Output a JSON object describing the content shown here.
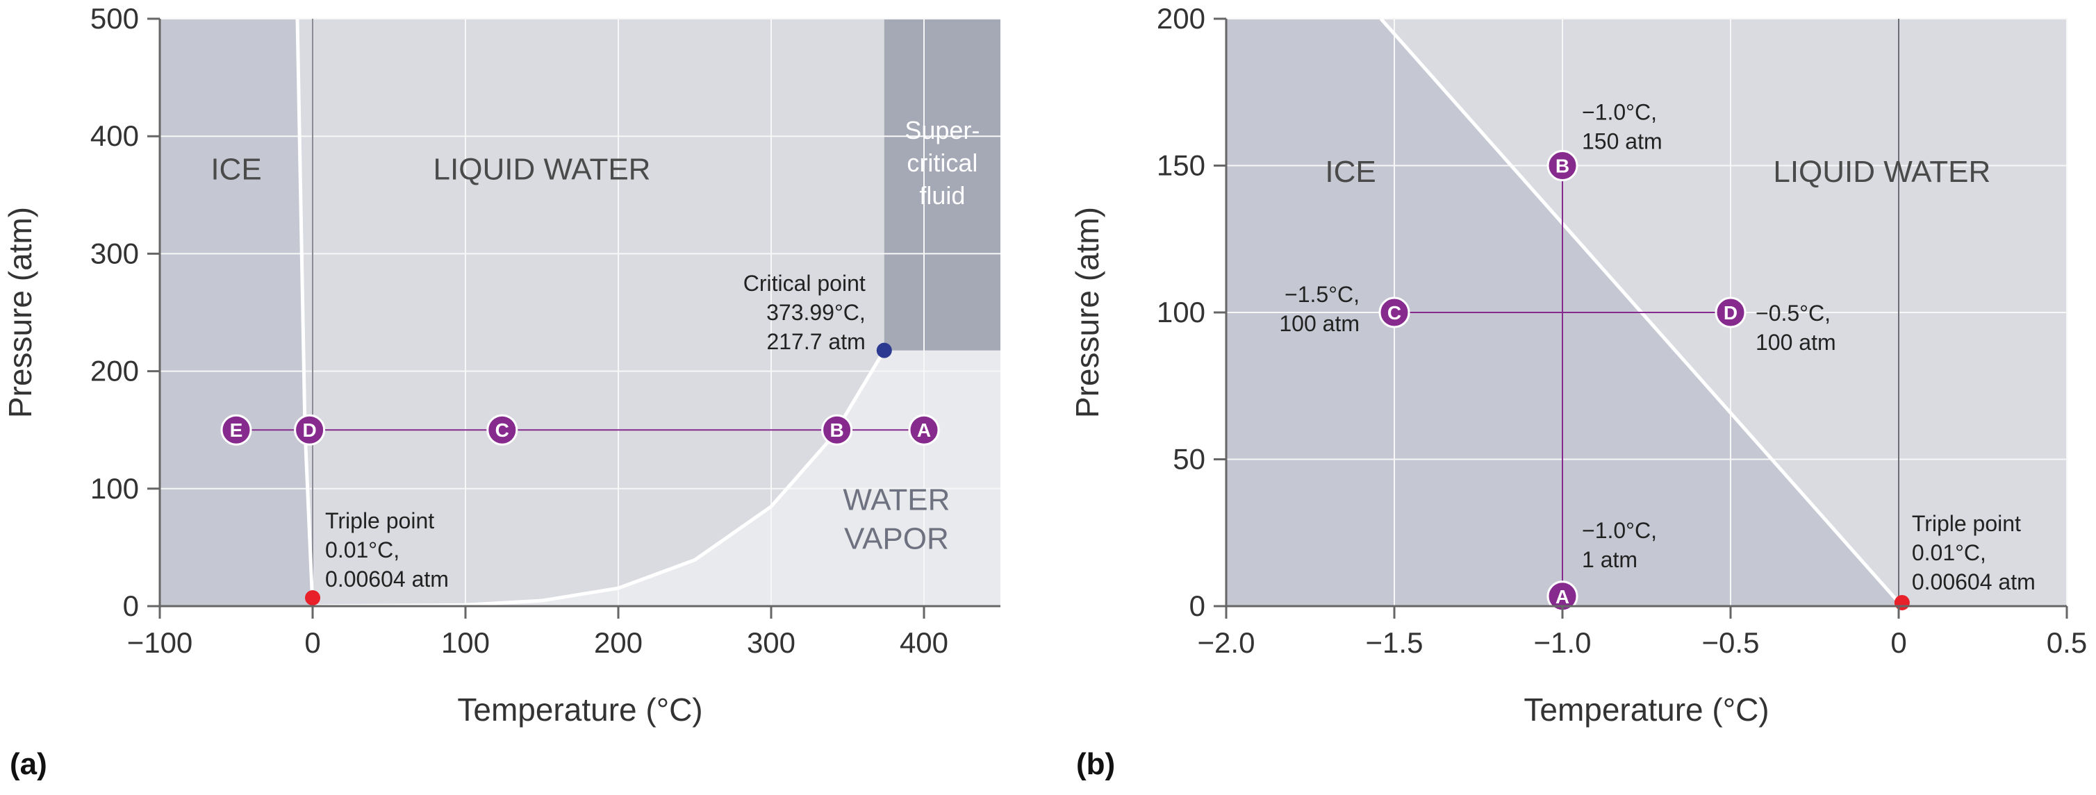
{
  "chart_data": [
    {
      "panel_label": "(a)",
      "type": "phase-diagram",
      "xlabel": "Temperature (°C)",
      "ylabel": "Pressure (atm)",
      "xlim": [
        -100,
        450
      ],
      "ylim": [
        0,
        500
      ],
      "xticks": [
        -100,
        0,
        100,
        200,
        300,
        400
      ],
      "yticks": [
        0,
        100,
        200,
        300,
        400,
        500
      ],
      "x_tick_labels": [
        "−100",
        "0",
        "100",
        "200",
        "300",
        "400"
      ],
      "y_tick_labels": [
        "0",
        "100",
        "200",
        "300",
        "400",
        "500"
      ],
      "grid": true,
      "regions": [
        {
          "label": "ICE",
          "x": -50,
          "y": 372
        },
        {
          "label": "LIQUID WATER",
          "x": 150,
          "y": 372
        },
        {
          "lines": [
            "Super-",
            "critical",
            "fluid"
          ],
          "x": 412,
          "y": 370
        },
        {
          "lines": [
            "WATER",
            "VAPOR"
          ],
          "x": 382,
          "y": 70
        }
      ],
      "boundaries": {
        "solid_liquid": [
          [
            -10,
            500
          ],
          [
            -5,
            150
          ],
          [
            0.01,
            0.006
          ]
        ],
        "liquid_vapor": [
          [
            0.01,
            0.006
          ],
          [
            100,
            1
          ],
          [
            150,
            4.7
          ],
          [
            200,
            15.3
          ],
          [
            250,
            39.3
          ],
          [
            300,
            84.8
          ],
          [
            340,
            144
          ],
          [
            373.99,
            217.7
          ]
        ],
        "supercritical_region": {
          "x_min": 373.99,
          "y_min": 217.7
        }
      },
      "path": {
        "y": 150,
        "points": [
          {
            "label": "E",
            "x": -50
          },
          {
            "label": "D",
            "x": -2
          },
          {
            "label": "C",
            "x": 124
          },
          {
            "label": "B",
            "x": 343
          },
          {
            "label": "A",
            "x": 400
          }
        ]
      },
      "special_points": [
        {
          "name": "triple",
          "x": 0.01,
          "y": 0.00604,
          "color": "#e8202a",
          "text": [
            "Triple point",
            "0.01°C,",
            "0.00604 atm"
          ]
        },
        {
          "name": "critical",
          "x": 373.99,
          "y": 217.7,
          "color": "#2b3990",
          "text": [
            "Critical point",
            "373.99°C,",
            "217.7 atm"
          ]
        }
      ]
    },
    {
      "panel_label": "(b)",
      "type": "phase-diagram",
      "xlabel": "Temperature (°C)",
      "ylabel": "Pressure (atm)",
      "xlim": [
        -2.0,
        0.5
      ],
      "ylim": [
        0,
        200
      ],
      "xticks": [
        -2.0,
        -1.5,
        -1.0,
        -0.5,
        0,
        0.5
      ],
      "yticks": [
        0,
        50,
        100,
        150,
        200
      ],
      "x_tick_labels": [
        "−2.0",
        "−1.5",
        "−1.0",
        "−0.5",
        "0",
        "0.5"
      ],
      "y_tick_labels": [
        "0",
        "50",
        "100",
        "150",
        "200"
      ],
      "grid": true,
      "regions": [
        {
          "label": "ICE",
          "x": -1.63,
          "y": 148
        },
        {
          "label": "LIQUID WATER",
          "x": -0.05,
          "y": 148
        }
      ],
      "boundaries": {
        "solid_liquid": [
          [
            -1.54,
            200
          ],
          [
            0.01,
            0.006
          ]
        ]
      },
      "paths": [
        {
          "from": [
            -1.0,
            1
          ],
          "to": [
            -1.0,
            150
          ]
        },
        {
          "from": [
            -1.5,
            100
          ],
          "to": [
            -0.5,
            100
          ]
        }
      ],
      "points": [
        {
          "label": "A",
          "x": -1.0,
          "y": 1,
          "text": [
            "−1.0°C,",
            "1 atm"
          ]
        },
        {
          "label": "B",
          "x": -1.0,
          "y": 150,
          "text": [
            "−1.0°C,",
            "150 atm"
          ]
        },
        {
          "label": "C",
          "x": -1.5,
          "y": 100,
          "text": [
            "−1.5°C,",
            "100 atm"
          ]
        },
        {
          "label": "D",
          "x": -0.5,
          "y": 100,
          "text": [
            "−0.5°C,",
            "100 atm"
          ]
        }
      ],
      "special_points": [
        {
          "name": "triple",
          "x": 0.01,
          "y": 0.00604,
          "color": "#e8202a",
          "text": [
            "Triple point",
            "0.01°C,",
            "0.00604 atm"
          ]
        }
      ]
    }
  ],
  "colors": {
    "ice": "#c5c8d2",
    "liquid": "#d9dbe0",
    "vapor": "#e9eaed",
    "supercritical": "#a5a9b6",
    "grid": "#f7f7f8",
    "axis": "#666666",
    "boundary": "#ffffff",
    "marker": "#862a8e",
    "path": "#862a8e"
  }
}
